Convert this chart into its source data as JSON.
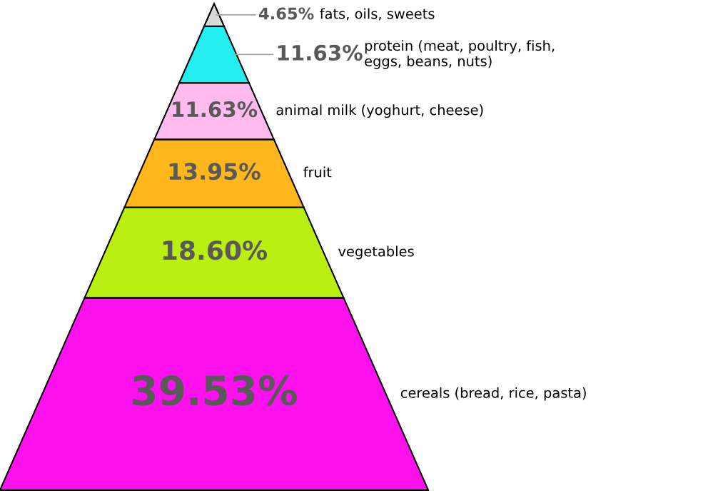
{
  "chart_data": {
    "type": "other",
    "categories": [
      "fats, oils, sweets",
      "protein (meat, poultry, fish,\neggs, beans, nuts)",
      "animal milk (yoghurt, cheese)",
      "fruit",
      "vegetables",
      "cereals (bread, rice, pasta)"
    ],
    "values": [
      4.65,
      11.63,
      11.63,
      13.95,
      18.6,
      39.53
    ],
    "value_labels": [
      "4.65%",
      "11.63%",
      "11.63%",
      "13.95%",
      "18.60%",
      "39.53%"
    ],
    "colors": [
      "#d9d9d9",
      "#22eef0",
      "#ffbbee",
      "#ffb71b",
      "#bbee11",
      "#ff11ee"
    ]
  }
}
